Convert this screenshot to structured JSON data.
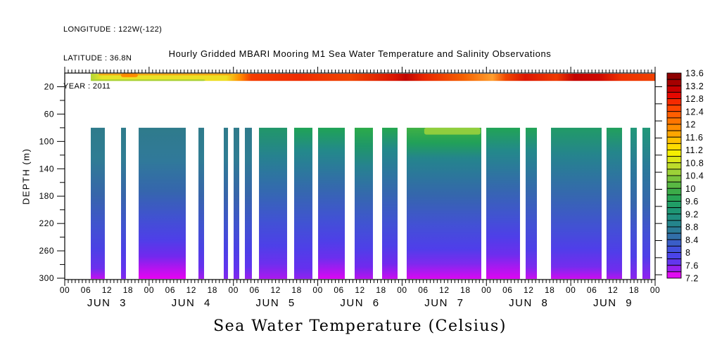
{
  "header": {
    "longitude": "LONGITUDE : 122W(-122)",
    "latitude": "LATITUDE : 36.8N",
    "year": "YEAR : 2011"
  },
  "chart_data": {
    "type": "heatmap",
    "title": "Hourly Gridded MBARI Mooring M1 Sea Water Temperature and Salinity Observations",
    "bottom_title": "Sea Water Temperature (Celsius)",
    "ylabel": "DEPTH (m)",
    "background": "#ffffff",
    "frame_color": "#000000",
    "x_axis": {
      "total_hours": 168,
      "minor_tick_hours": 1,
      "major_tick_hours": 24,
      "hour_label_step": 6,
      "hour_label_cycle": [
        "00",
        "06",
        "12",
        "18"
      ],
      "day_labels": [
        "JUN 3",
        "JUN 4",
        "JUN 5",
        "JUN 6",
        "JUN 7",
        "JUN 8",
        "JUN 9"
      ]
    },
    "y_axis": {
      "range": [
        0,
        302
      ],
      "tick_labels": [
        20,
        60,
        100,
        140,
        180,
        220,
        260,
        300
      ],
      "minor_ticks": [
        40,
        80,
        120,
        160,
        200,
        240,
        280
      ]
    },
    "right_axis_tick_depths": [
      20,
      45,
      70,
      95,
      120,
      145,
      170,
      195,
      220,
      245,
      270,
      295
    ],
    "colorbar": {
      "value_range": [
        7.2,
        13.6
      ],
      "value_labels": [
        "13.6",
        "13.2",
        "12.8",
        "12.4",
        "12",
        "11.6",
        "11.2",
        "10.8",
        "10.4",
        "10",
        "9.6",
        "9.2",
        "8.8",
        "8.4",
        "8",
        "7.6",
        "7.2"
      ],
      "cell_colors": [
        "#8e0000",
        "#a60000",
        "#c80000",
        "#e60800",
        "#f62a00",
        "#ff4600",
        "#ff5e00",
        "#ff7500",
        "#ff8d00",
        "#ffa600",
        "#ffc100",
        "#ffdc00",
        "#f6ef00",
        "#dce818",
        "#bddc2b",
        "#9dd138",
        "#7ac43e",
        "#59b843",
        "#3cac49",
        "#28a556",
        "#209e66",
        "#1e9674",
        "#208e80",
        "#24858c",
        "#2b7b98",
        "#326fa9",
        "#3a5ec8",
        "#4251dc",
        "#4b44e9",
        "#6336ee",
        "#9722f0",
        "#e00cf2"
      ]
    },
    "surface_band": {
      "hours": [
        7.4,
        168
      ],
      "depths": [
        1,
        11.5
      ],
      "gradient": [
        [
          0,
          "#b3d537"
        ],
        [
          0.02,
          "#e6e428"
        ],
        [
          0.24,
          "#eede24"
        ],
        [
          0.265,
          "#ff8a00"
        ],
        [
          0.285,
          "#f43c00"
        ],
        [
          0.37,
          "#ee2d00"
        ],
        [
          0.46,
          "#f04400"
        ],
        [
          0.54,
          "#d81400"
        ],
        [
          0.558,
          "#c00600"
        ],
        [
          0.59,
          "#e82600"
        ],
        [
          0.66,
          "#f56000"
        ],
        [
          0.712,
          "#ff9e2e"
        ],
        [
          0.735,
          "#f04800"
        ],
        [
          0.77,
          "#dc1600"
        ],
        [
          0.825,
          "#ee3a00"
        ],
        [
          0.857,
          "#c40400"
        ],
        [
          0.9,
          "#cd0800"
        ],
        [
          0.94,
          "#ee3300"
        ],
        [
          1,
          "#ef4000"
        ]
      ]
    },
    "deep_depth_range": [
      80,
      301
    ],
    "deep_columns": [
      {
        "hours": [
          7.41,
          11.41
        ],
        "stops": [
          [
            0,
            "#2f7b8b"
          ],
          [
            0.2,
            "#2f7d93"
          ],
          [
            0.45,
            "#3765ab"
          ],
          [
            0.65,
            "#4053d0"
          ],
          [
            0.8,
            "#4b41e5"
          ],
          [
            0.93,
            "#6c30ee"
          ],
          [
            1,
            "#c30ff0"
          ]
        ]
      },
      {
        "hours": [
          16.02,
          17.42
        ],
        "stops": [
          [
            0,
            "#2f7b8b"
          ],
          [
            0.2,
            "#2f7d93"
          ],
          [
            0.45,
            "#3765ab"
          ],
          [
            0.65,
            "#4053d0"
          ],
          [
            0.8,
            "#4b41e5"
          ],
          [
            0.92,
            "#5f35ee"
          ],
          [
            1,
            "#8226ee"
          ]
        ]
      },
      {
        "hours": [
          21.03,
          34.44
        ],
        "stops": [
          [
            0,
            "#2f7b8b"
          ],
          [
            0.22,
            "#30799a"
          ],
          [
            0.42,
            "#3566ad"
          ],
          [
            0.6,
            "#4151d2"
          ],
          [
            0.74,
            "#4e3fe8"
          ],
          [
            0.85,
            "#7129ee"
          ],
          [
            0.93,
            "#b414ef"
          ],
          [
            1,
            "#e603f2"
          ]
        ]
      },
      {
        "hours": [
          38.05,
          39.65
        ],
        "stops": [
          [
            0,
            "#2f7b8b"
          ],
          [
            0.2,
            "#2f7d93"
          ],
          [
            0.45,
            "#3765ab"
          ],
          [
            0.65,
            "#4053d0"
          ],
          [
            0.8,
            "#4b41e5"
          ],
          [
            0.92,
            "#6630ee"
          ],
          [
            1,
            "#a31bef"
          ]
        ]
      },
      {
        "hours": [
          45.25,
          46.46
        ],
        "stops": [
          [
            0,
            "#2f7b8b"
          ],
          [
            0.2,
            "#2f7d93"
          ],
          [
            0.45,
            "#3765ab"
          ],
          [
            0.65,
            "#4053d0"
          ],
          [
            0.8,
            "#4b41e5"
          ],
          [
            0.92,
            "#5f35ee"
          ],
          [
            1,
            "#8226ee"
          ]
        ]
      },
      {
        "hours": [
          48.06,
          49.66
        ],
        "stops": [
          [
            0,
            "#2f7b8b"
          ],
          [
            0.2,
            "#2f7d93"
          ],
          [
            0.45,
            "#3765ab"
          ],
          [
            0.65,
            "#4053d0"
          ],
          [
            0.8,
            "#4b41e5"
          ],
          [
            0.92,
            "#5f35ee"
          ],
          [
            1,
            "#8226ee"
          ]
        ]
      },
      {
        "hours": [
          51.26,
          53.26
        ],
        "stops": [
          [
            0,
            "#2f7b8b"
          ],
          [
            0.2,
            "#2f7d93"
          ],
          [
            0.45,
            "#3765ab"
          ],
          [
            0.65,
            "#4053d0"
          ],
          [
            0.8,
            "#4b41e5"
          ],
          [
            0.92,
            "#5f35ee"
          ],
          [
            1,
            "#9a20ef"
          ]
        ]
      },
      {
        "hours": [
          55.27,
          63.28
        ],
        "stops": [
          [
            0,
            "#219768"
          ],
          [
            0.18,
            "#26838e"
          ],
          [
            0.42,
            "#3469b0"
          ],
          [
            0.62,
            "#4152d4"
          ],
          [
            0.78,
            "#4d40e8"
          ],
          [
            0.9,
            "#6d2fee"
          ],
          [
            1,
            "#ab18ef"
          ]
        ]
      },
      {
        "hours": [
          65.28,
          70.48
        ],
        "stops": [
          [
            0,
            "#1fa355"
          ],
          [
            0.15,
            "#23898a"
          ],
          [
            0.42,
            "#3568ae"
          ],
          [
            0.64,
            "#4152d4"
          ],
          [
            0.8,
            "#4e3fe8"
          ],
          [
            0.93,
            "#6530ee"
          ],
          [
            1,
            "#9122f0"
          ]
        ]
      },
      {
        "hours": [
          72.09,
          79.7
        ],
        "stops": [
          [
            0,
            "#1fa355"
          ],
          [
            0.15,
            "#23898a"
          ],
          [
            0.4,
            "#3568ae"
          ],
          [
            0.6,
            "#4152d4"
          ],
          [
            0.75,
            "#4e3fe8"
          ],
          [
            0.86,
            "#6b2fee"
          ],
          [
            0.94,
            "#aa18f0"
          ],
          [
            1,
            "#db07f2"
          ]
        ]
      },
      {
        "hours": [
          82.5,
          87.7
        ],
        "stops": [
          [
            0,
            "#2cab49"
          ],
          [
            0.12,
            "#1f9768"
          ],
          [
            0.25,
            "#26838e"
          ],
          [
            0.45,
            "#3568ae"
          ],
          [
            0.65,
            "#4152d4"
          ],
          [
            0.8,
            "#4e3fe8"
          ],
          [
            0.92,
            "#7029ee"
          ],
          [
            1,
            "#b712ef"
          ]
        ]
      },
      {
        "hours": [
          90.31,
          94.71
        ],
        "stops": [
          [
            0,
            "#23a74f"
          ],
          [
            0.14,
            "#22898a"
          ],
          [
            0.42,
            "#3568ae"
          ],
          [
            0.63,
            "#4152d4"
          ],
          [
            0.78,
            "#4e3fe8"
          ],
          [
            0.9,
            "#7129ee"
          ],
          [
            1,
            "#c90df1"
          ]
        ]
      },
      {
        "hours": [
          97.31,
          118.54
        ],
        "stops": [
          [
            0,
            "#3fb144"
          ],
          [
            0.1,
            "#21a059"
          ],
          [
            0.2,
            "#24858c"
          ],
          [
            0.45,
            "#3566ad"
          ],
          [
            0.65,
            "#4350d6"
          ],
          [
            0.8,
            "#4f3eea"
          ],
          [
            0.9,
            "#7e2aee"
          ],
          [
            1,
            "#d808f2"
          ]
        ]
      },
      {
        "hours": [
          119.94,
          129.55
        ],
        "stops": [
          [
            0,
            "#21a455"
          ],
          [
            0.15,
            "#23898a"
          ],
          [
            0.4,
            "#3568ae"
          ],
          [
            0.6,
            "#4251d4"
          ],
          [
            0.72,
            "#4e3fe8"
          ],
          [
            0.84,
            "#6d2eee"
          ],
          [
            0.93,
            "#ad17f0"
          ],
          [
            1,
            "#dc06f2"
          ]
        ]
      },
      {
        "hours": [
          131.16,
          134.36
        ],
        "stops": [
          [
            0,
            "#21a455"
          ],
          [
            0.15,
            "#23898a"
          ],
          [
            0.42,
            "#3568ae"
          ],
          [
            0.64,
            "#4251d4"
          ],
          [
            0.8,
            "#4e3fe8"
          ],
          [
            0.92,
            "#7a2bee"
          ],
          [
            1,
            "#c90df1"
          ]
        ]
      },
      {
        "hours": [
          138.37,
          152.78
        ],
        "stops": [
          [
            0,
            "#219b66"
          ],
          [
            0.18,
            "#25848d"
          ],
          [
            0.44,
            "#3568ae"
          ],
          [
            0.66,
            "#4251d4"
          ],
          [
            0.8,
            "#4f3ee9"
          ],
          [
            0.92,
            "#752cee"
          ],
          [
            1,
            "#cb0cf1"
          ]
        ]
      },
      {
        "hours": [
          154.18,
          158.59
        ],
        "stops": [
          [
            0,
            "#21a05c"
          ],
          [
            0.16,
            "#24868b"
          ],
          [
            0.44,
            "#3568ae"
          ],
          [
            0.66,
            "#4251d4"
          ],
          [
            0.82,
            "#4f3ee9"
          ],
          [
            0.94,
            "#6f2dee"
          ],
          [
            1,
            "#b114ef"
          ]
        ]
      },
      {
        "hours": [
          160.99,
          162.79
        ],
        "stops": [
          [
            0,
            "#219878"
          ],
          [
            0.25,
            "#2a7b98"
          ],
          [
            0.5,
            "#3566ad"
          ],
          [
            0.7,
            "#4350d6"
          ],
          [
            0.85,
            "#4e3fe8"
          ],
          [
            1,
            "#8a24ef"
          ]
        ]
      },
      {
        "hours": [
          164.39,
          166.6
        ],
        "stops": [
          [
            0,
            "#219878"
          ],
          [
            0.25,
            "#2a7b98"
          ],
          [
            0.5,
            "#3566ad"
          ],
          [
            0.7,
            "#4350d6"
          ],
          [
            0.85,
            "#4e3fe8"
          ],
          [
            1,
            "#9220f0"
          ]
        ]
      }
    ],
    "overlays": [
      {
        "name": "surface-orange-top-left",
        "hours": [
          9.6,
          47.5
        ],
        "depths": [
          0.8,
          3.4
        ],
        "color": "#f7a213",
        "opacity": 0.85
      },
      {
        "name": "surface-green-bottom-left",
        "hours": [
          7.4,
          40
        ],
        "depths": [
          9.3,
          11.5
        ],
        "color": "#a4cf3a",
        "opacity": 0.9
      },
      {
        "name": "surface-warm-spot",
        "hours": [
          16,
          20.8
        ],
        "depths": [
          0.8,
          6
        ],
        "color": "#ff8800",
        "opacity": 0.95
      },
      {
        "name": "thermocline-bright-patch",
        "hours": [
          102.3,
          118.3
        ],
        "depths": [
          80,
          90
        ],
        "color": "#a0d43c",
        "opacity": 0.85
      }
    ]
  }
}
